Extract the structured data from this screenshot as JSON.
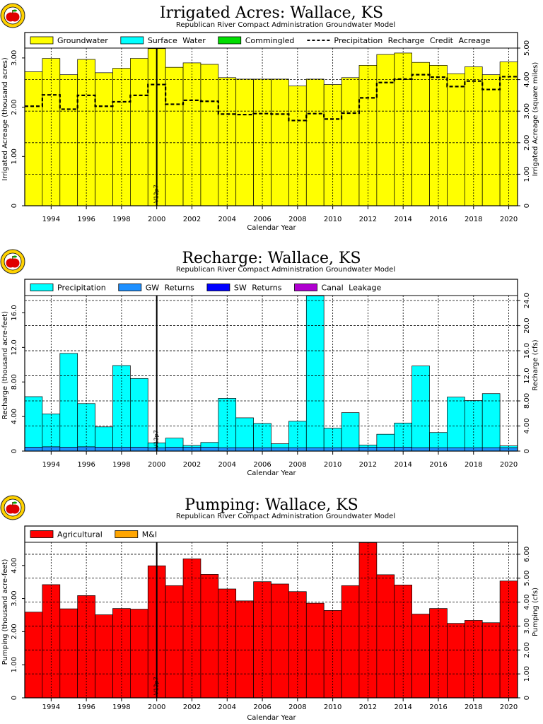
{
  "logo_icon": "apple-logo-icon",
  "chart_data": [
    {
      "type": "bar",
      "title": "Irrigated Acres: Wallace, KS",
      "subtitle": "Republican River Compact Administration Groundwater Model",
      "xlabel": "Calendar Year",
      "ylabel": "Irrigated Acreage (thousand acres)",
      "y2label": "Irrigated Acreage (square miles)",
      "years": [
        1993,
        1994,
        1995,
        1996,
        1997,
        1998,
        1999,
        2000,
        2001,
        2002,
        2003,
        2004,
        2005,
        2006,
        2007,
        2008,
        2009,
        2010,
        2011,
        2012,
        2013,
        2014,
        2015,
        2016,
        2017,
        2018,
        2019,
        2020
      ],
      "xticks": [
        "1994",
        "1996",
        "1998",
        "2000",
        "2002",
        "2004",
        "2006",
        "2008",
        "2010",
        "2012",
        "2014",
        "2016",
        "2018",
        "2020"
      ],
      "ylim": [
        0,
        3.2
      ],
      "yticks": [
        "0",
        "1.00",
        "2.00",
        "3.00"
      ],
      "y2lim": [
        0,
        5.0
      ],
      "y2ticks": [
        "0",
        "1.00",
        "2.00",
        "3.00",
        "4.00",
        "5.00"
      ],
      "legend": [
        {
          "name": "Groundwater",
          "color": "#ffff00",
          "kind": "box"
        },
        {
          "name": "Surface Water",
          "color": "#00ffff",
          "kind": "box"
        },
        {
          "name": "Commingled",
          "color": "#00dd00",
          "kind": "box"
        },
        {
          "name": "Precipitation Recharge Credit Acreage",
          "color": "#000000",
          "kind": "dash"
        }
      ],
      "series": [
        {
          "name": "Groundwater",
          "color": "#ffff00",
          "values": [
            2.72,
            2.99,
            2.66,
            2.97,
            2.7,
            2.79,
            2.99,
            3.19,
            2.81,
            2.9,
            2.87,
            2.6,
            2.57,
            2.57,
            2.57,
            2.43,
            2.57,
            2.46,
            2.6,
            2.85,
            3.07,
            3.1,
            2.91,
            2.85,
            2.68,
            2.82,
            2.66,
            2.92
          ]
        }
      ],
      "dashed_series": {
        "name": "Precipitation Recharge Credit Acreage",
        "values": [
          2.02,
          2.25,
          1.96,
          2.24,
          2.02,
          2.11,
          2.24,
          2.46,
          2.06,
          2.14,
          2.12,
          1.86,
          1.85,
          1.87,
          1.86,
          1.73,
          1.87,
          1.76,
          1.88,
          2.19,
          2.5,
          2.57,
          2.66,
          2.61,
          2.42,
          2.53,
          2.36,
          2.62
        ]
      },
      "marker": {
        "x": 2000.5,
        "label": "V12p7"
      }
    },
    {
      "type": "bar",
      "title": "Recharge: Wallace, KS",
      "subtitle": "Republican River Compact Administration Groundwater Model",
      "xlabel": "Calendar Year",
      "ylabel": "Recharge (thousand acre-feet)",
      "y2label": "Recharge (cfs)",
      "years": [
        1993,
        1994,
        1995,
        1996,
        1997,
        1998,
        1999,
        2000,
        2001,
        2002,
        2003,
        2004,
        2005,
        2006,
        2007,
        2008,
        2009,
        2010,
        2011,
        2012,
        2013,
        2014,
        2015,
        2016,
        2017,
        2018,
        2019,
        2020
      ],
      "xticks": [
        "1994",
        "1996",
        "1998",
        "2000",
        "2002",
        "2004",
        "2006",
        "2008",
        "2010",
        "2012",
        "2014",
        "2016",
        "2018",
        "2020"
      ],
      "ylim": [
        0,
        18.0
      ],
      "yticks": [
        "0",
        "4.00",
        "8.00",
        "12.0",
        "16.0"
      ],
      "y2lim": [
        0,
        24.8
      ],
      "y2ticks": [
        "0",
        "4.00",
        "8.00",
        "12.0",
        "16.0",
        "20.0",
        "24.0"
      ],
      "legend": [
        {
          "name": "Precipitation",
          "color": "#00ffff",
          "kind": "box"
        },
        {
          "name": "GW Returns",
          "color": "#1e90ff",
          "kind": "box"
        },
        {
          "name": "SW Returns",
          "color": "#0000ff",
          "kind": "box"
        },
        {
          "name": "Canal Leakage",
          "color": "#b000d0",
          "kind": "box"
        }
      ],
      "series": [
        {
          "name": "GW Returns",
          "color": "#1e90ff",
          "values": [
            0.45,
            0.5,
            0.45,
            0.5,
            0.45,
            0.45,
            0.45,
            0.4,
            0.45,
            0.45,
            0.45,
            0.4,
            0.4,
            0.4,
            0.4,
            0.4,
            0.4,
            0.4,
            0.4,
            0.45,
            0.45,
            0.45,
            0.4,
            0.4,
            0.4,
            0.4,
            0.4,
            0.4
          ]
        },
        {
          "name": "Precipitation",
          "color": "#00ffff",
          "values": [
            5.85,
            3.8,
            10.85,
            5.0,
            2.35,
            9.45,
            7.95,
            0.55,
            1.05,
            0.2,
            0.55,
            5.7,
            3.45,
            2.8,
            0.45,
            3.05,
            17.55,
            2.25,
            4.05,
            0.25,
            1.5,
            2.8,
            9.45,
            1.75,
            5.85,
            5.45,
            6.25,
            0.2
          ]
        }
      ],
      "marker": {
        "x": 2000.5,
        "label": "V12p7"
      }
    },
    {
      "type": "bar",
      "title": "Pumping: Wallace, KS",
      "subtitle": "Republican River Compact Administration Groundwater Model",
      "xlabel": "Calendar Year",
      "ylabel": "Pumping (thousand acre-feet)",
      "y2label": "Pumping (cfs)",
      "years": [
        1993,
        1994,
        1995,
        1996,
        1997,
        1998,
        1999,
        2000,
        2001,
        2002,
        2003,
        2004,
        2005,
        2006,
        2007,
        2008,
        2009,
        2010,
        2011,
        2012,
        2013,
        2014,
        2015,
        2016,
        2017,
        2018,
        2019,
        2020
      ],
      "xticks": [
        "1994",
        "1996",
        "1998",
        "2000",
        "2002",
        "2004",
        "2006",
        "2008",
        "2010",
        "2012",
        "2014",
        "2016",
        "2018",
        "2020"
      ],
      "ylim": [
        0,
        4.7
      ],
      "yticks": [
        "0",
        "1.00",
        "2.00",
        "3.00",
        "4.00"
      ],
      "y2lim": [
        0,
        6.5
      ],
      "y2ticks": [
        "0",
        "1.00",
        "2.00",
        "3.00",
        "4.00",
        "5.00",
        "6.00"
      ],
      "legend": [
        {
          "name": "Agricultural",
          "color": "#ff0000",
          "kind": "box"
        },
        {
          "name": "M&I",
          "color": "#ffa500",
          "kind": "box"
        }
      ],
      "series": [
        {
          "name": "Agricultural",
          "color": "#ff0000",
          "values": [
            2.59,
            3.42,
            2.69,
            3.09,
            2.51,
            2.7,
            2.68,
            3.99,
            3.39,
            4.2,
            3.73,
            3.29,
            2.93,
            3.51,
            3.44,
            3.21,
            2.86,
            2.64,
            3.39,
            4.69,
            3.72,
            3.41,
            2.53,
            2.7,
            2.25,
            2.34,
            2.27,
            3.53
          ]
        }
      ],
      "marker": {
        "x": 2000.5,
        "label": "V12p7"
      }
    }
  ]
}
